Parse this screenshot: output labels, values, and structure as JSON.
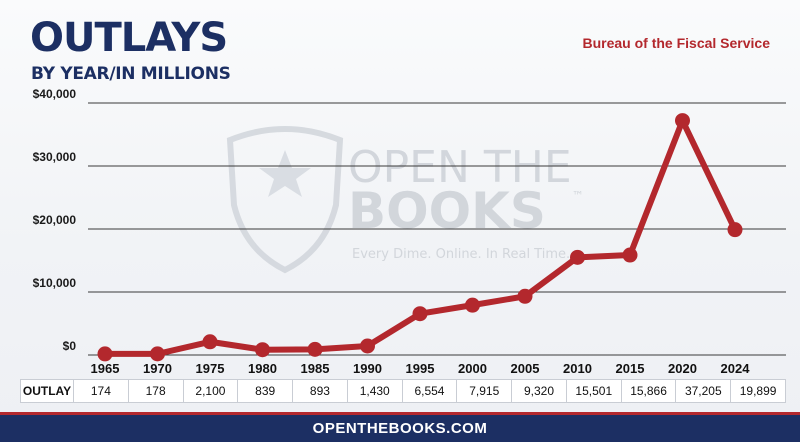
{
  "header": {
    "title": "OUTLAYS",
    "subtitle": "BY YEAR/IN MILLIONS",
    "source": "Bureau of the Fiscal Service"
  },
  "watermark": {
    "line1": "OPEN THE",
    "line2": "BOOKS",
    "tm": "™",
    "tagline": "Every Dime. Online. In Real Time."
  },
  "table": {
    "row_label": "OUTLAY"
  },
  "footer": {
    "url": "OPENTHEBOOKS.COM"
  },
  "colors": {
    "line": "#b3282d",
    "navy": "#1c2f63",
    "grid": "#3a3a3a"
  },
  "chart_data": {
    "type": "line",
    "title": "OUTLAYS",
    "subtitle": "BY YEAR/IN MILLIONS",
    "xlabel": "",
    "ylabel": "",
    "categories": [
      "1965",
      "1970",
      "1975",
      "1980",
      "1985",
      "1990",
      "1995",
      "2000",
      "2005",
      "2010",
      "2015",
      "2020",
      "2024"
    ],
    "series": [
      {
        "values": [
          174,
          178,
          2100,
          839,
          893,
          1430,
          6554,
          7915,
          9320,
          15501,
          15866,
          37205,
          19899
        ]
      }
    ],
    "value_labels": [
      "174",
      "178",
      "2,100",
      "839",
      "893",
      "1,430",
      "6,554",
      "7,915",
      "9,320",
      "15,501",
      "15,866",
      "37,205",
      "19,899"
    ],
    "yticks": [
      0,
      10000,
      20000,
      30000,
      40000
    ],
    "ytick_labels": [
      "$0",
      "$10,000",
      "$20,000",
      "$30,000",
      "$40,000"
    ],
    "ylim": [
      0,
      40000
    ],
    "grid": true,
    "legend": "none"
  }
}
